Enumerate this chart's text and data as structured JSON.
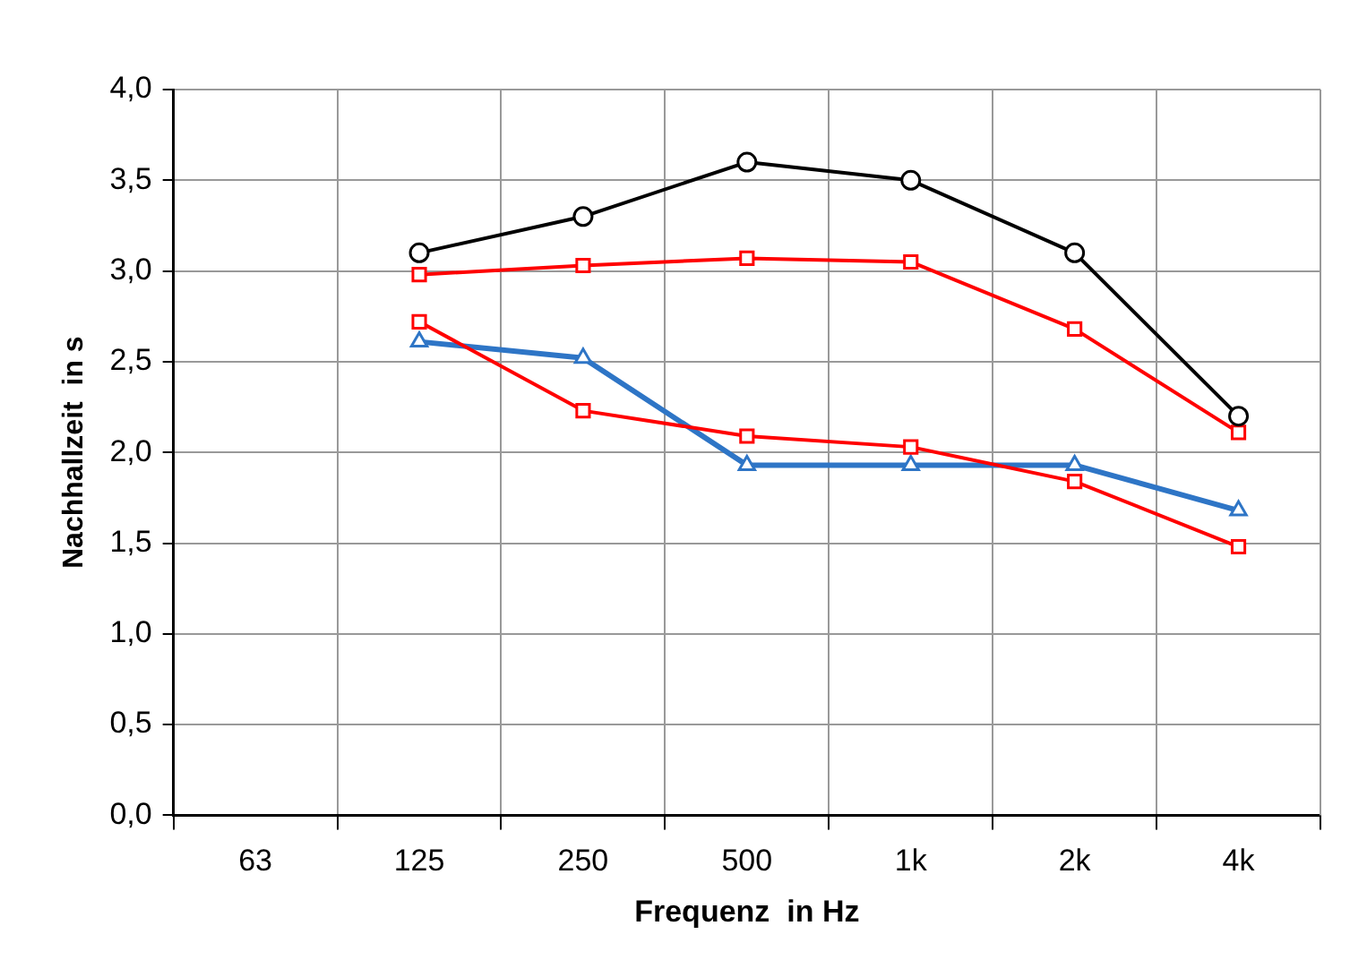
{
  "chart_data": {
    "type": "line",
    "xlabel": "Frequenz  in Hz",
    "ylabel": "Nachhallzeit  in s",
    "categories": [
      "63",
      "125",
      "250",
      "500",
      "1k",
      "2k",
      "4k"
    ],
    "ylim": [
      0,
      4
    ],
    "yticks": [
      {
        "value": 0,
        "label": "0,0"
      },
      {
        "value": 0.5,
        "label": "0,5"
      },
      {
        "value": 1,
        "label": "1,0"
      },
      {
        "value": 1.5,
        "label": "1,5"
      },
      {
        "value": 2,
        "label": "2,0"
      },
      {
        "value": 2.5,
        "label": "2,5"
      },
      {
        "value": 3,
        "label": "3,0"
      },
      {
        "value": 3.5,
        "label": "3,5"
      },
      {
        "value": 4,
        "label": "4,0"
      }
    ],
    "grid": true,
    "legend": false,
    "line_style": "solid",
    "series": [
      {
        "color": "#000000",
        "marker": "circle",
        "values": [
          null,
          3.1,
          3.3,
          3.6,
          3.5,
          3.1,
          2.2
        ]
      },
      {
        "color": "#ff0000",
        "marker": "square",
        "values": [
          null,
          2.98,
          3.03,
          3.07,
          3.05,
          2.68,
          2.11
        ]
      },
      {
        "color": "#ff0000",
        "marker": "square",
        "values": [
          null,
          2.72,
          2.23,
          2.09,
          2.03,
          1.84,
          1.48
        ]
      },
      {
        "color": "#2e75c6",
        "marker": "triangle",
        "values": [
          null,
          2.61,
          2.52,
          1.93,
          1.93,
          1.93,
          1.68
        ]
      }
    ]
  }
}
